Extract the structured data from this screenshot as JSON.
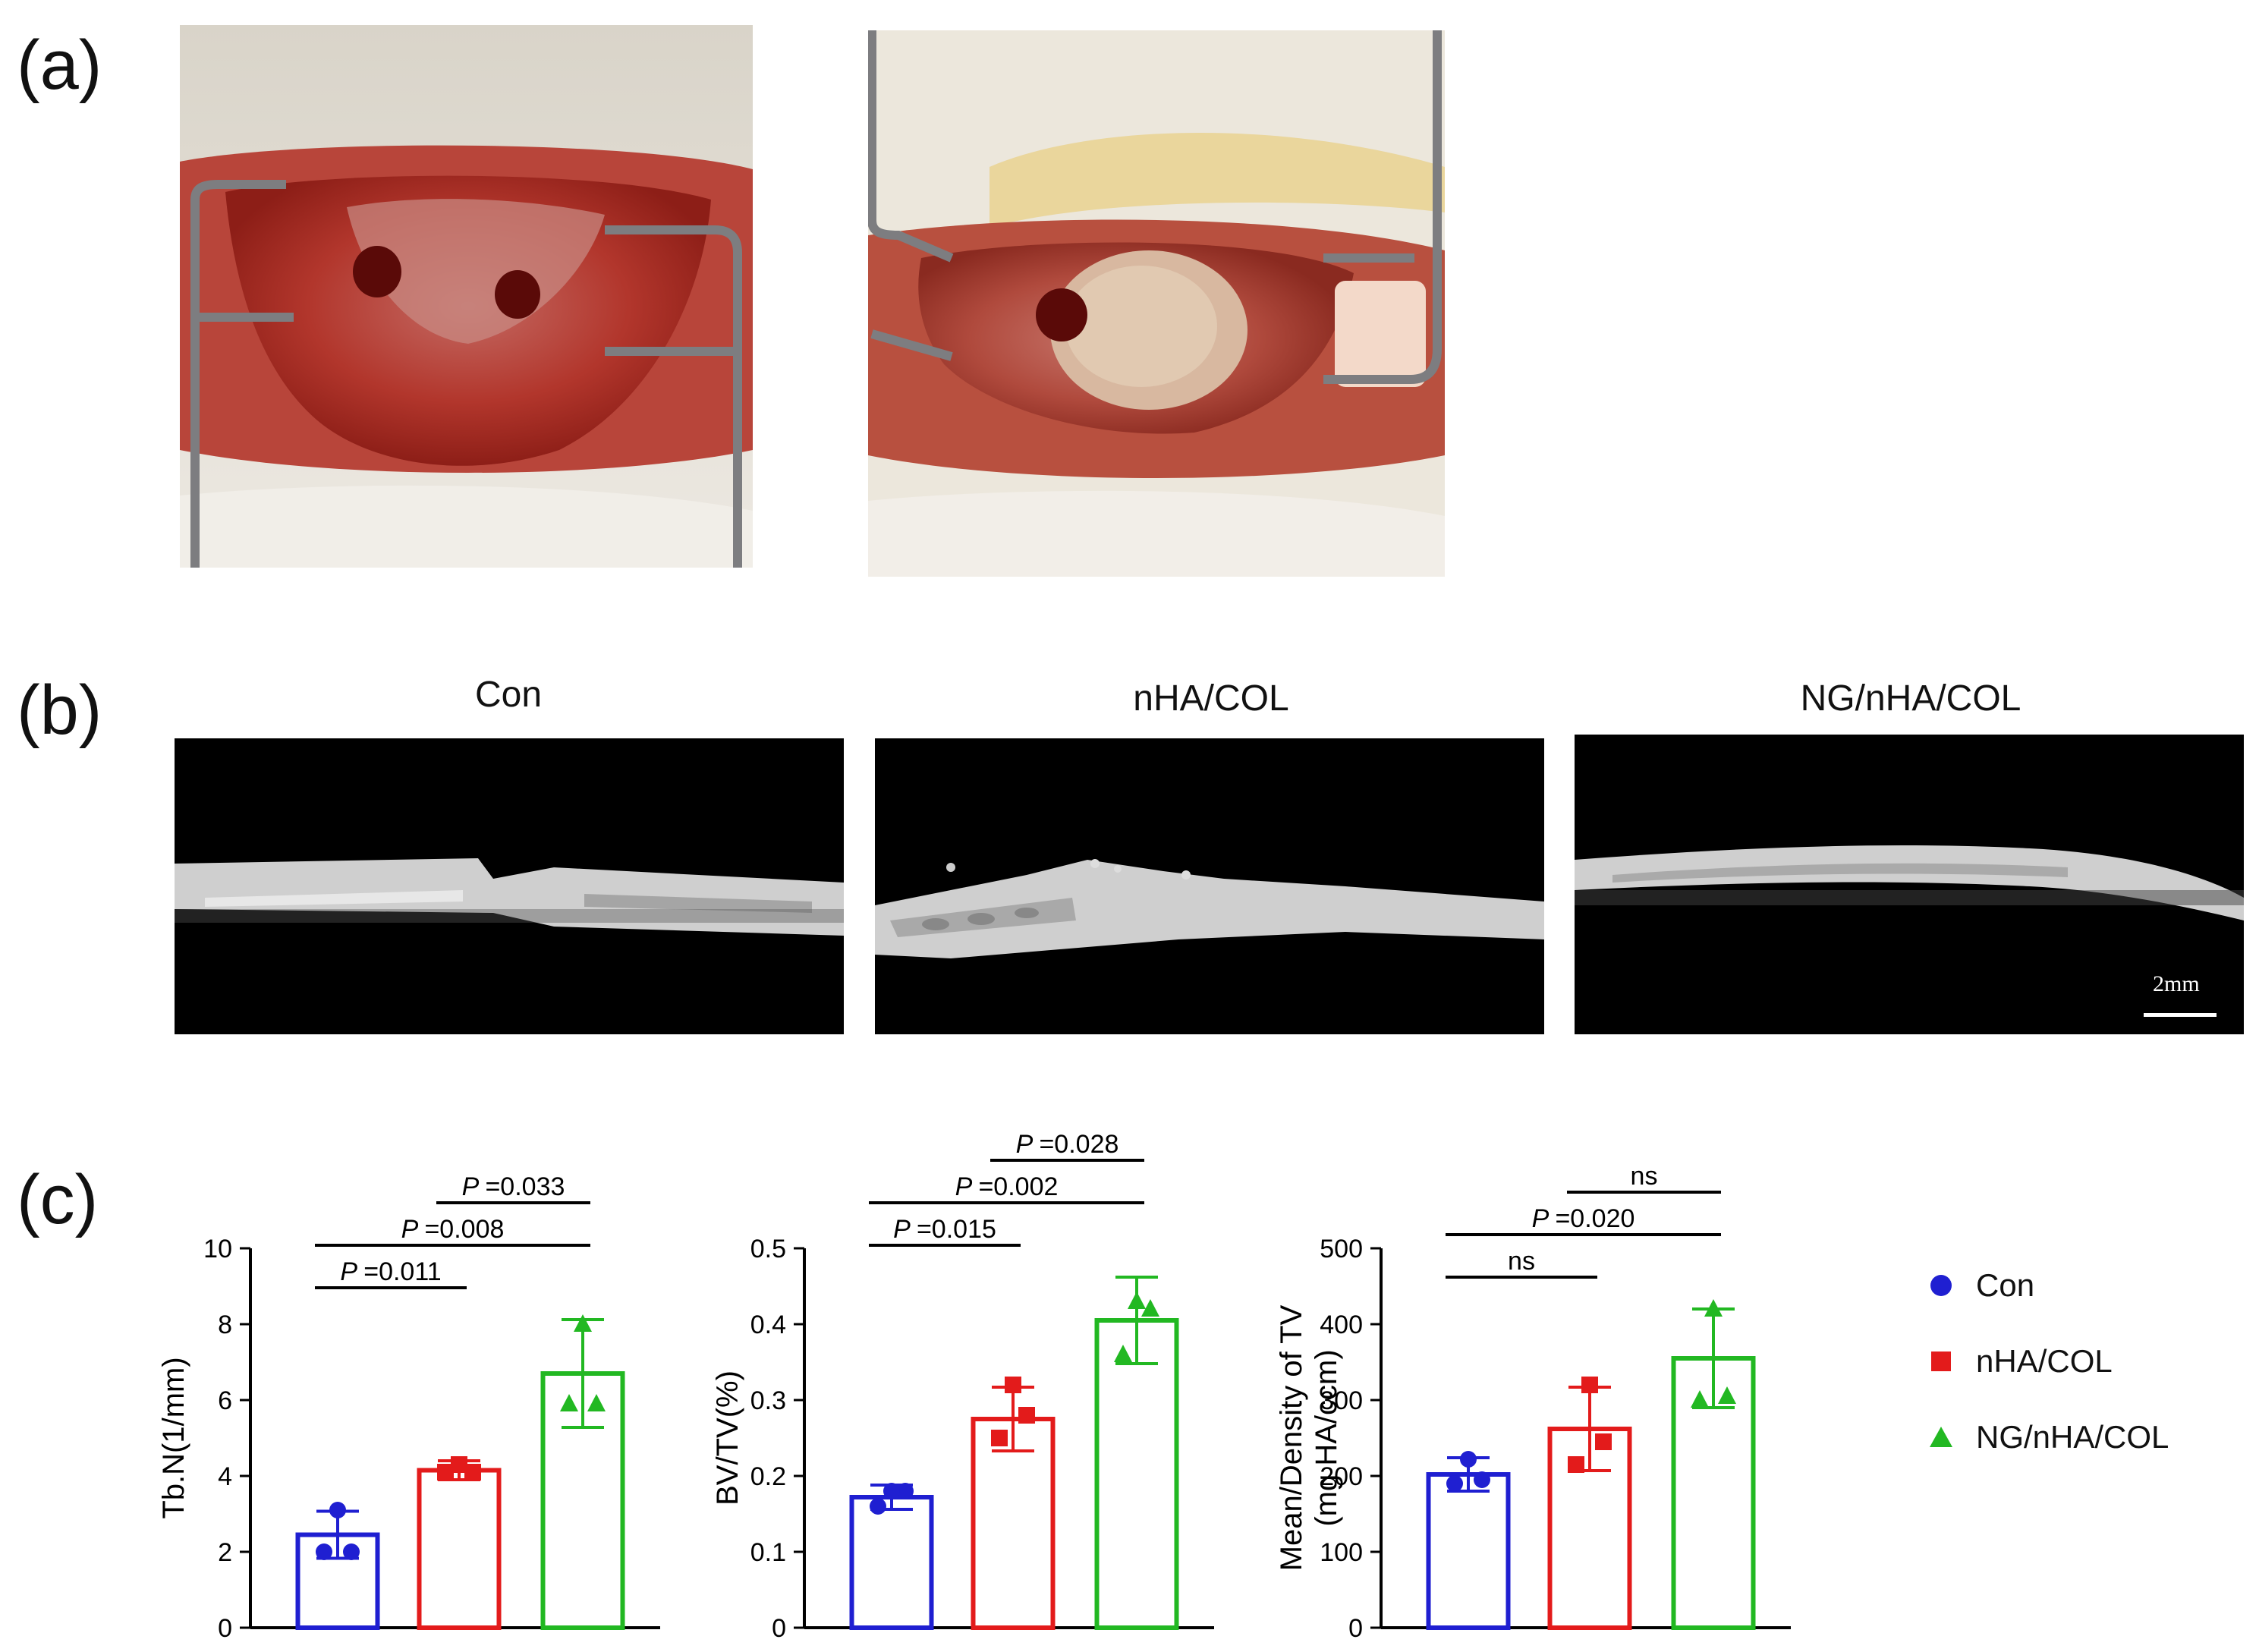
{
  "labels": {
    "a": "(a)",
    "b": "(b)",
    "c": "(c)"
  },
  "ct_panels": {
    "titles": [
      "Con",
      "nHA/COL",
      "NG/nHA/COL"
    ],
    "scale_bar": "2mm"
  },
  "colors": {
    "con": "#1f1fd1",
    "nha": "#e31b1b",
    "ng": "#22b822"
  },
  "legend": [
    {
      "name": "Con",
      "color": "#1f1fd1",
      "marker": "circle"
    },
    {
      "name": "nHA/COL",
      "color": "#e31b1b",
      "marker": "square"
    },
    {
      "name": "NG/nHA/COL",
      "color": "#22b822",
      "marker": "triangle"
    }
  ],
  "chart_data": [
    {
      "type": "bar",
      "categories": [
        "Con",
        "nHA/COL",
        "NG/nHA/COL"
      ],
      "values": [
        2.45,
        4.15,
        6.7
      ],
      "errors": [
        0.62,
        0.25,
        1.42
      ],
      "points": [
        [
          2.0,
          2.0,
          3.1
        ],
        [
          4.1,
          4.1,
          4.3
        ],
        [
          5.9,
          5.9,
          8.0
        ]
      ],
      "ylabel": "Tb.N(1/mm)",
      "ylim": [
        0,
        10
      ],
      "yticks": [
        0,
        2,
        4,
        6,
        8,
        10
      ],
      "comparisons": [
        {
          "from": 0,
          "to": 1,
          "p_label": "P",
          "label": "=0.011",
          "level": 0
        },
        {
          "from": 0,
          "to": 2,
          "p_label": "P",
          "label": "=0.008",
          "level": 1
        },
        {
          "from": 1,
          "to": 2,
          "p_label": "P",
          "label": "=0.033",
          "level": 2
        }
      ]
    },
    {
      "type": "bar",
      "categories": [
        "Con",
        "nHA/COL",
        "NG/nHA/COL"
      ],
      "values": [
        0.172,
        0.275,
        0.405
      ],
      "errors": [
        0.016,
        0.042,
        0.057
      ],
      "points": [
        [
          0.16,
          0.18,
          0.18
        ],
        [
          0.25,
          0.28,
          0.32
        ],
        [
          0.36,
          0.42,
          0.43
        ]
      ],
      "ylabel": "BV/TV(%)",
      "ylim": [
        0,
        0.5
      ],
      "yticks": [
        0,
        0.1,
        0.2,
        0.3,
        0.4,
        0.5
      ],
      "comparisons": [
        {
          "from": 0,
          "to": 1,
          "p_label": "P",
          "label": "=0.015",
          "level": 0
        },
        {
          "from": 0,
          "to": 2,
          "p_label": "P",
          "label": "=0.002",
          "level": 1
        },
        {
          "from": 1,
          "to": 2,
          "p_label": "P",
          "label": "=0.028",
          "level": 2
        }
      ]
    },
    {
      "type": "bar",
      "categories": [
        "Con",
        "nHA/COL",
        "NG/nHA/COL"
      ],
      "values": [
        202,
        262,
        355
      ],
      "errors": [
        22,
        55,
        65
      ],
      "points": [
        [
          190,
          195,
          222
        ],
        [
          215,
          245,
          320
        ],
        [
          300,
          305,
          420
        ]
      ],
      "ylabel": "Mean/Density of TV",
      "ylabel2": "(mg HA/ccm)",
      "ylim": [
        0,
        500
      ],
      "yticks": [
        0,
        100,
        200,
        300,
        400,
        500
      ],
      "comparisons": [
        {
          "from": 0,
          "to": 1,
          "p_label": "",
          "label": "ns",
          "level": 0
        },
        {
          "from": 0,
          "to": 2,
          "p_label": "P",
          "label": "=0.020",
          "level": 1
        },
        {
          "from": 1,
          "to": 2,
          "p_label": "",
          "label": "ns",
          "level": 2
        }
      ]
    }
  ]
}
